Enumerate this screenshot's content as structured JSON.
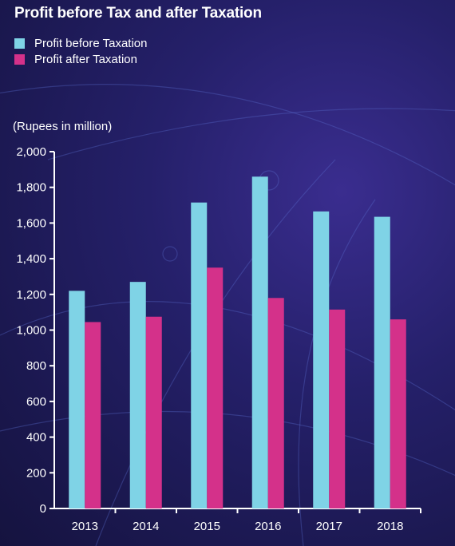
{
  "chart_data": {
    "type": "bar",
    "title": "Profit before Tax and after Taxation",
    "unit_label": "(Rupees in million)",
    "categories": [
      "2013",
      "2014",
      "2015",
      "2016",
      "2017",
      "2018"
    ],
    "series": [
      {
        "name": "Profit before Taxation",
        "color": "#7fd3e6",
        "values": [
          1220,
          1270,
          1715,
          1860,
          1665,
          1635
        ]
      },
      {
        "name": "Profit after Taxation",
        "color": "#d4318a",
        "values": [
          1045,
          1075,
          1350,
          1180,
          1115,
          1060
        ]
      }
    ],
    "ylim": [
      0,
      2000
    ],
    "yticks": [
      "0",
      "200",
      "400",
      "600",
      "800",
      "1,000",
      "1,200",
      "1,400",
      "1,600",
      "1,800",
      "2,000"
    ],
    "grid": false,
    "legend_position": "top-left"
  }
}
